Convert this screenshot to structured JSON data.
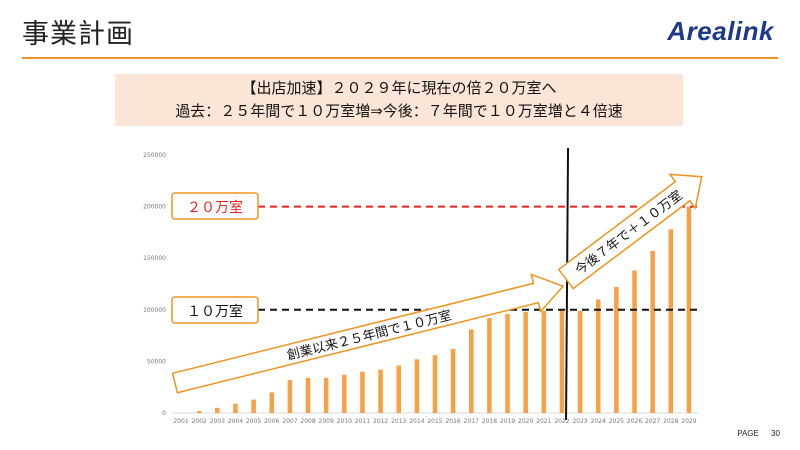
{
  "slide": {
    "title": "事業計画"
  },
  "logo": {
    "text": "Arealink"
  },
  "banner": {
    "line1": "【出店加速】２０２９年に現在の倍２０万室へ",
    "line2": "過去：２５年間で１０万室増⇒今後：７年間で１０万室増と４倍速"
  },
  "footer": {
    "page_label": "PAGE",
    "page_number": "30"
  },
  "callouts": {
    "target": "２０万室",
    "current": "１０万室",
    "past_arrow": "創業以来２５年間で１０万室",
    "future_arrow": "今後７年で＋１０万室"
  },
  "colors": {
    "accent": "#f0931e",
    "bar": "#f7a044",
    "target_line": "#e8231f",
    "logo": "#1d3a8a",
    "banner_bg": "#fbe5d6"
  },
  "chart_data": {
    "type": "bar",
    "categories": [
      "2001",
      "2002",
      "2003",
      "2004",
      "2005",
      "2006",
      "2007",
      "2008",
      "2009",
      "2010",
      "2011",
      "2012",
      "2013",
      "2014",
      "2015",
      "2016",
      "2017",
      "2018",
      "2019",
      "2020",
      "2021",
      "2022",
      "2023",
      "2024",
      "2025",
      "2026",
      "2027",
      "2028",
      "2029"
    ],
    "values": [
      0,
      2000,
      5000,
      9000,
      13000,
      20000,
      32000,
      34000,
      34000,
      37000,
      40000,
      42000,
      46000,
      52000,
      56000,
      62000,
      81000,
      92000,
      96000,
      98000,
      99000,
      99000,
      99000,
      110000,
      122000,
      138000,
      157000,
      178000,
      200000
    ],
    "ylim": [
      0,
      250000
    ],
    "yticks": [
      0,
      50000,
      100000,
      150000,
      200000,
      250000
    ],
    "title": "",
    "xlabel": "",
    "ylabel": "",
    "reference_lines": [
      {
        "value": 200000,
        "style": "dashed-red"
      },
      {
        "value": 100000,
        "style": "dashed-black"
      }
    ],
    "divider_after": "2022",
    "grid": false
  }
}
